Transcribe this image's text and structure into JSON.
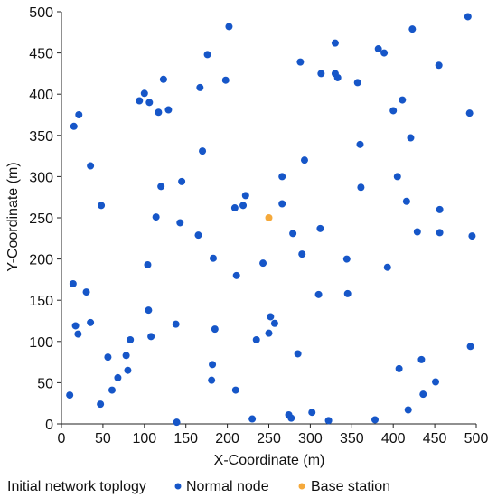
{
  "chart_data": {
    "type": "scatter",
    "xlabel": "X-Coordinate (m)",
    "ylabel": "Y-Coordinate (m)",
    "xlim": [
      0,
      500
    ],
    "ylim": [
      0,
      500
    ],
    "xticks": [
      "0",
      "50",
      "100",
      "150",
      "200",
      "250",
      "300",
      "350",
      "400",
      "450",
      "500"
    ],
    "yticks": [
      "0",
      "50",
      "100",
      "150",
      "200",
      "250",
      "300",
      "350",
      "400",
      "450",
      "500"
    ],
    "grid": false,
    "legend_title": "Initial network toplogy",
    "legend_position": "bottom",
    "series": [
      {
        "name": "Normal node",
        "color": "#1656c8",
        "points": [
          [
            10,
            35
          ],
          [
            47,
            24
          ],
          [
            56,
            81
          ],
          [
            61,
            41
          ],
          [
            68,
            56
          ],
          [
            78,
            83
          ],
          [
            83,
            102
          ],
          [
            80,
            65
          ],
          [
            17,
            119
          ],
          [
            20,
            109
          ],
          [
            35,
            123
          ],
          [
            30,
            160
          ],
          [
            14,
            170
          ],
          [
            48,
            265
          ],
          [
            35,
            313
          ],
          [
            15,
            361
          ],
          [
            21,
            375
          ],
          [
            94,
            392
          ],
          [
            100,
            401
          ],
          [
            106,
            390
          ],
          [
            117,
            378
          ],
          [
            123,
            418
          ],
          [
            129,
            381
          ],
          [
            176,
            448
          ],
          [
            202,
            482
          ],
          [
            198,
            417
          ],
          [
            167,
            408
          ],
          [
            170,
            331
          ],
          [
            145,
            294
          ],
          [
            120,
            288
          ],
          [
            114,
            251
          ],
          [
            143,
            244
          ],
          [
            165,
            229
          ],
          [
            104,
            193
          ],
          [
            105,
            138
          ],
          [
            108,
            106
          ],
          [
            138,
            121
          ],
          [
            183,
            201
          ],
          [
            185,
            115
          ],
          [
            182,
            72
          ],
          [
            181,
            53
          ],
          [
            211,
            180
          ],
          [
            209,
            262
          ],
          [
            219,
            265
          ],
          [
            222,
            277
          ],
          [
            243,
            195
          ],
          [
            252,
            130
          ],
          [
            257,
            122
          ],
          [
            250,
            110
          ],
          [
            235,
            102
          ],
          [
            210,
            41
          ],
          [
            230,
            6
          ],
          [
            139,
            2
          ],
          [
            266,
            300
          ],
          [
            266,
            267
          ],
          [
            279,
            231
          ],
          [
            290,
            206
          ],
          [
            293,
            320
          ],
          [
            288,
            439
          ],
          [
            312,
            237
          ],
          [
            310,
            157
          ],
          [
            313,
            425
          ],
          [
            330,
            425
          ],
          [
            333,
            420
          ],
          [
            330,
            462
          ],
          [
            285,
            85
          ],
          [
            274,
            11
          ],
          [
            277,
            7
          ],
          [
            302,
            14
          ],
          [
            322,
            4
          ],
          [
            344,
            200
          ],
          [
            345,
            158
          ],
          [
            357,
            414
          ],
          [
            360,
            339
          ],
          [
            361,
            287
          ],
          [
            382,
            455
          ],
          [
            389,
            450
          ],
          [
            400,
            380
          ],
          [
            405,
            300
          ],
          [
            411,
            393
          ],
          [
            416,
            270
          ],
          [
            421,
            347
          ],
          [
            423,
            479
          ],
          [
            429,
            233
          ],
          [
            393,
            190
          ],
          [
            407,
            67
          ],
          [
            434,
            78
          ],
          [
            436,
            36
          ],
          [
            451,
            51
          ],
          [
            455,
            435
          ],
          [
            456,
            260
          ],
          [
            456,
            232
          ],
          [
            418,
            17
          ],
          [
            378,
            5
          ],
          [
            490,
            494
          ],
          [
            492,
            377
          ],
          [
            495,
            228
          ],
          [
            493,
            94
          ]
        ]
      },
      {
        "name": "Base station",
        "color": "#f5a93b",
        "points": [
          [
            250,
            250
          ]
        ]
      }
    ]
  }
}
